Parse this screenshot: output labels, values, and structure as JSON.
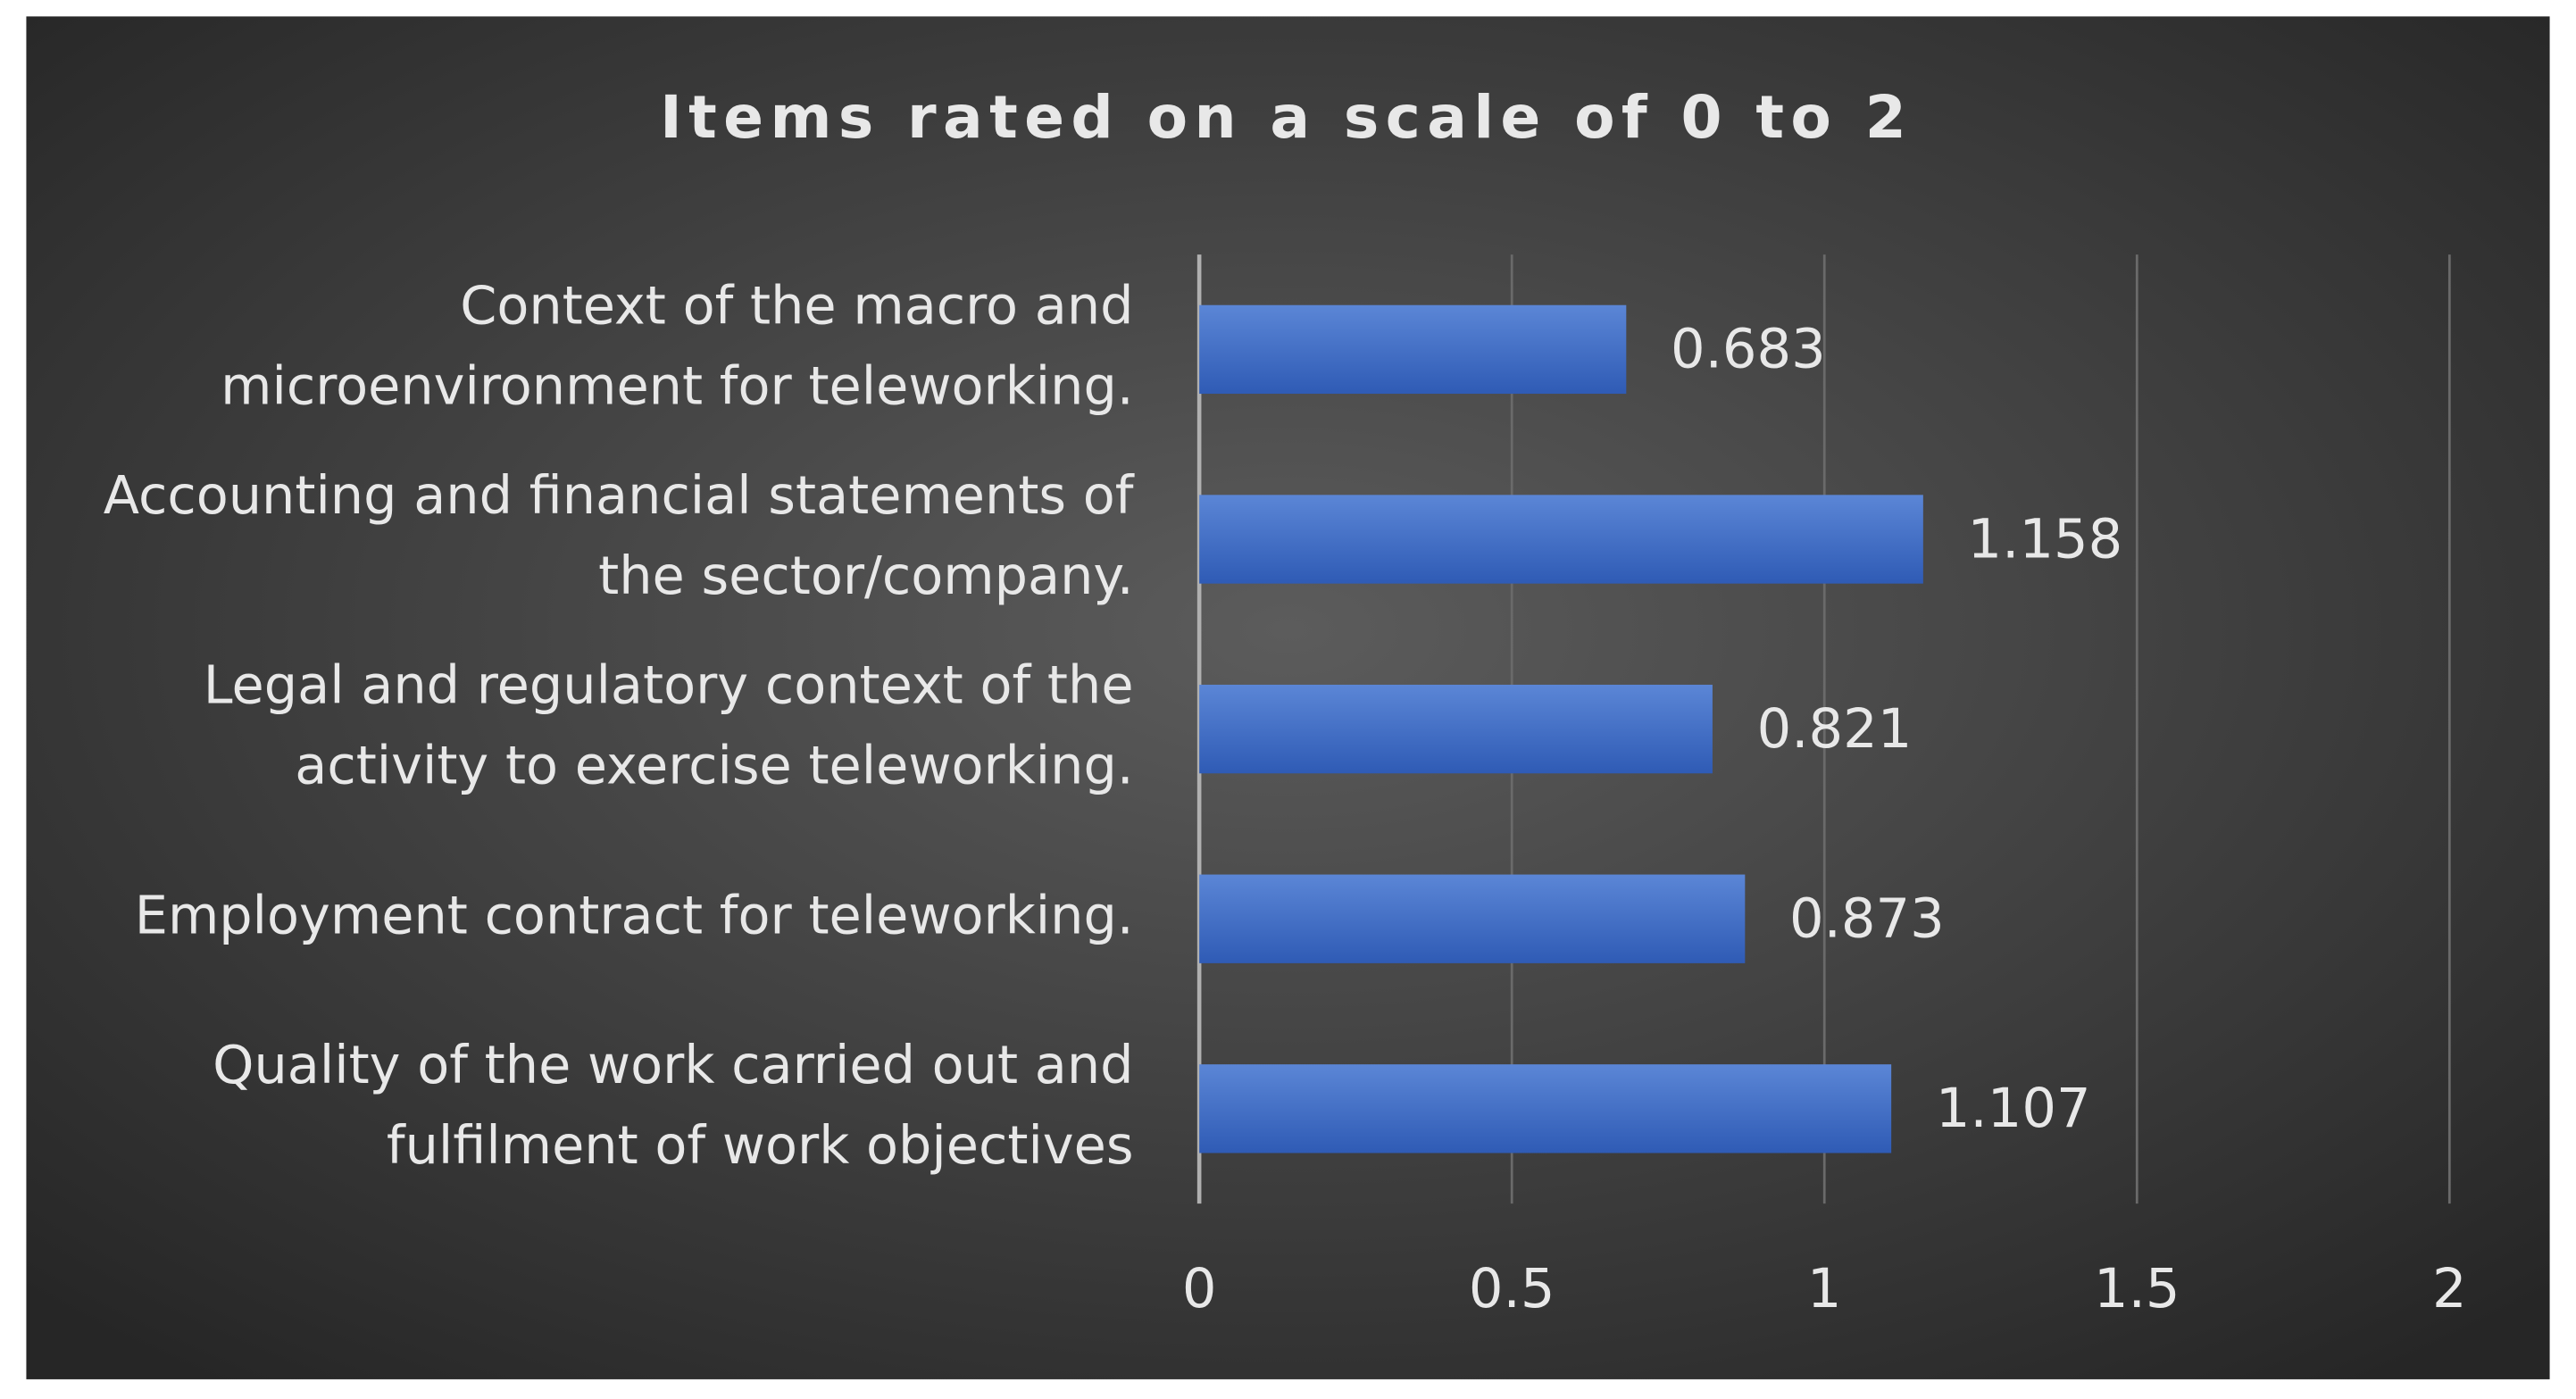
{
  "chart_data": {
    "type": "bar",
    "orientation": "horizontal",
    "title": "Items rated on a scale of 0 to 2",
    "categories": [
      "Context of the macro and\nmicroenvironment for teleworking.",
      "Accounting and financial statements of\nthe sector/company.",
      "Legal and regulatory context of the\nactivity to exercise teleworking.",
      "Employment contract for teleworking.",
      "Quality of the work carried out and\nfulfilment of work objectives"
    ],
    "values": [
      0.683,
      1.158,
      0.821,
      0.873,
      1.107
    ],
    "color": "#4472c4",
    "xlim": [
      0,
      2
    ],
    "xticks": [
      0,
      0.5,
      1,
      1.5,
      2
    ],
    "grid": true
  }
}
